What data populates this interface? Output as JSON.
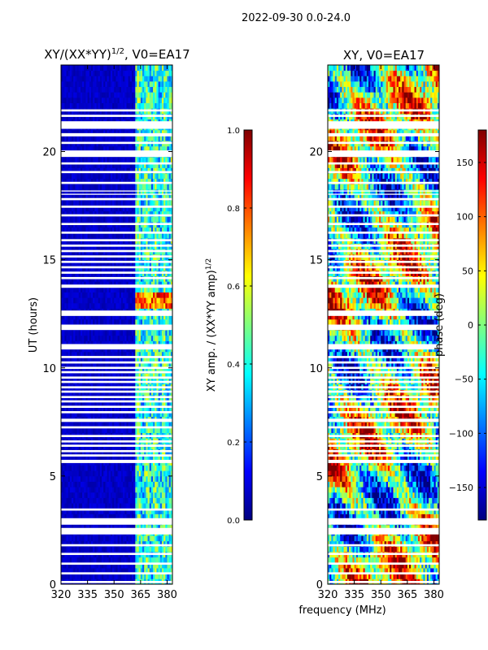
{
  "suptitle": "2022-09-30 0.0-24.0",
  "xlabel": "frequency (MHz)",
  "ylabel": "UT (hours)",
  "colormap": [
    "#00007f",
    "#0000ff",
    "#007fff",
    "#00ffff",
    "#7fff7f",
    "#ffff00",
    "#ff7f00",
    "#ff0000",
    "#7f0000"
  ],
  "chart_data": [
    {
      "type": "heatmap",
      "title_main": "XY/(XX*YY)",
      "title_sup": "1/2",
      "title_tail": ", V0=EA17",
      "xlim": [
        320,
        383
      ],
      "ylim": [
        0,
        24
      ],
      "xticks": [
        320,
        335,
        350,
        365,
        380
      ],
      "yticks": [
        0,
        5,
        10,
        15,
        20
      ],
      "ytick_labels": [
        "0",
        "5",
        "10",
        "15",
        "20"
      ],
      "colorbar": {
        "label": "XY amp. / (XX*YY amp)",
        "label_sup": "1/2",
        "range": [
          0.0,
          1.0
        ],
        "ticks": [
          0.0,
          0.2,
          0.4,
          0.6,
          0.8,
          1.0
        ],
        "tick_labels": [
          "0.0",
          "0.2",
          "0.4",
          "0.6",
          "0.8",
          "1.0"
        ]
      },
      "description": "Low amplitude (~0.05) below 360 MHz; elevated amplitude (~0.3-0.5) in 360-383 MHz band; peak ~0.8 near 363-375 MHz around 13 UT"
    },
    {
      "type": "heatmap",
      "title": "XY, V0=EA17",
      "xlim": [
        320,
        383
      ],
      "ylim": [
        0,
        24
      ],
      "xticks": [
        320,
        335,
        350,
        365,
        380
      ],
      "yticks": [
        0,
        5,
        10,
        15,
        20
      ],
      "ytick_labels": [
        "0",
        "5",
        "10",
        "15",
        "20"
      ],
      "colorbar": {
        "label": "phase (deg)",
        "range": [
          -180,
          180
        ],
        "ticks": [
          -150,
          -100,
          -50,
          0,
          50,
          100,
          150
        ],
        "tick_labels": [
          "−150",
          "−100",
          "−50",
          "0",
          "50",
          "100",
          "150"
        ]
      },
      "description": "Phase fluctuates across full -180 to 180 range with banded structure"
    }
  ],
  "flagged_intervals_ut": [
    [
      0.05,
      0.15
    ],
    [
      0.45,
      0.55
    ],
    [
      0.9,
      1.0
    ],
    [
      1.35,
      1.45
    ],
    [
      1.75,
      1.85
    ],
    [
      2.3,
      2.6
    ],
    [
      2.75,
      3.05
    ],
    [
      3.4,
      3.5
    ],
    [
      5.6,
      5.75
    ],
    [
      5.9,
      6.0
    ],
    [
      6.1,
      6.2
    ],
    [
      6.35,
      6.45
    ],
    [
      6.55,
      6.65
    ],
    [
      6.8,
      6.9
    ],
    [
      7.2,
      7.3
    ],
    [
      7.5,
      7.65
    ],
    [
      7.9,
      8.0
    ],
    [
      8.15,
      8.25
    ],
    [
      8.4,
      8.5
    ],
    [
      8.6,
      8.7
    ],
    [
      8.85,
      8.95
    ],
    [
      9.05,
      9.15
    ],
    [
      9.3,
      9.4
    ],
    [
      9.5,
      9.6
    ],
    [
      9.75,
      9.85
    ],
    [
      9.95,
      10.05
    ],
    [
      10.2,
      10.3
    ],
    [
      10.45,
      10.55
    ],
    [
      10.85,
      11.1
    ],
    [
      11.75,
      12.0
    ],
    [
      12.4,
      12.65
    ],
    [
      13.7,
      13.85
    ],
    [
      14.1,
      14.2
    ],
    [
      14.35,
      14.45
    ],
    [
      14.6,
      14.7
    ],
    [
      14.85,
      14.95
    ],
    [
      15.1,
      15.2
    ],
    [
      15.35,
      15.45
    ],
    [
      15.6,
      15.7
    ],
    [
      15.85,
      15.95
    ],
    [
      16.2,
      16.3
    ],
    [
      16.6,
      16.7
    ],
    [
      17.0,
      17.1
    ],
    [
      17.4,
      17.5
    ],
    [
      17.75,
      17.85
    ],
    [
      18.0,
      18.05
    ],
    [
      18.15,
      18.2
    ],
    [
      18.5,
      18.6
    ],
    [
      19.0,
      19.1
    ],
    [
      19.4,
      19.5
    ],
    [
      19.75,
      20.05
    ],
    [
      20.35,
      20.45
    ],
    [
      20.7,
      20.85
    ],
    [
      21.05,
      21.4
    ],
    [
      21.6,
      21.7
    ],
    [
      21.85,
      21.95
    ]
  ]
}
